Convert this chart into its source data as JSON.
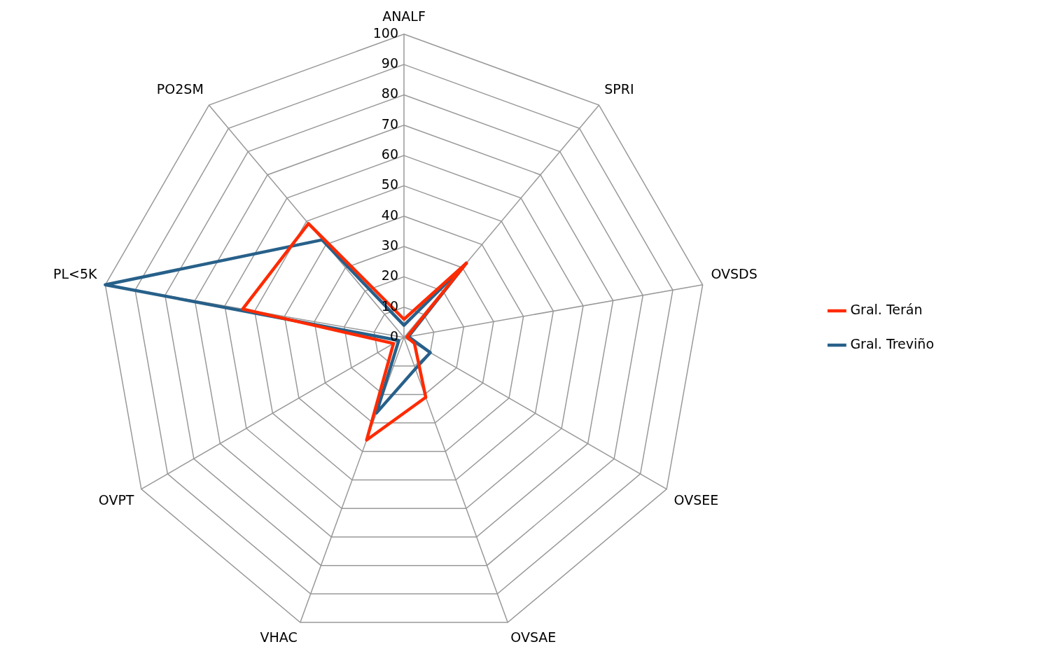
{
  "chart_data": {
    "type": "radar",
    "categories": [
      "ANALF",
      "SPRI",
      "OVSDS",
      "OVSEE",
      "OVSAE",
      "VHAC",
      "OVPT",
      "PL<5K",
      "PO2SM"
    ],
    "series": [
      {
        "name": "Gral. Terán",
        "color": "#ff2a00",
        "values": [
          6,
          32,
          1,
          4,
          21,
          36,
          4,
          54,
          49
        ]
      },
      {
        "name": "Gral. Treviño",
        "color": "#27608a",
        "values": [
          4,
          32,
          1.5,
          10,
          11,
          26.5,
          2,
          100,
          42
        ]
      }
    ],
    "ylim": [
      0,
      100
    ],
    "yticks": [
      0,
      10,
      20,
      30,
      40,
      50,
      60,
      70,
      80,
      90,
      100
    ],
    "grid": true,
    "legend": "right",
    "marker": "none",
    "line_style": "solid"
  }
}
